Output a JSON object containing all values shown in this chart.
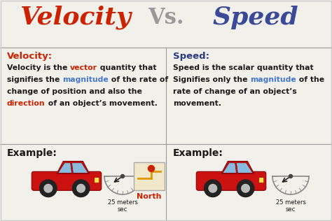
{
  "title_velocity": "Velocity",
  "title_vs": "Vs.",
  "title_speed": "Speed",
  "velocity_heading": "Velocity:",
  "speed_heading": "Speed:",
  "velocity_text_line1_parts": [
    {
      "text": "Velocity is the ",
      "color": "#1a1a1a"
    },
    {
      "text": "vector",
      "color": "#cc2200"
    },
    {
      "text": " quantity that",
      "color": "#1a1a1a"
    }
  ],
  "velocity_text_line2_parts": [
    {
      "text": "signifies the ",
      "color": "#1a1a1a"
    },
    {
      "text": "magnitude",
      "color": "#4477cc"
    },
    {
      "text": " of the rate of",
      "color": "#1a1a1a"
    }
  ],
  "velocity_text_line3_parts": [
    {
      "text": "change of position and also the",
      "color": "#1a1a1a"
    }
  ],
  "velocity_text_line4_parts": [
    {
      "text": "direction",
      "color": "#cc2200"
    },
    {
      "text": " of an object’s movement.",
      "color": "#1a1a1a"
    }
  ],
  "speed_text_line1_parts": [
    {
      "text": "Speed is the scalar quantity that",
      "color": "#1a1a1a"
    }
  ],
  "speed_text_line2_parts": [
    {
      "text": "Signifies only the ",
      "color": "#1a1a1a"
    },
    {
      "text": "magnitude",
      "color": "#4477cc"
    },
    {
      "text": " of the",
      "color": "#1a1a1a"
    }
  ],
  "speed_text_line3_parts": [
    {
      "text": "rate of change of an object’s",
      "color": "#1a1a1a"
    }
  ],
  "speed_text_line4_parts": [
    {
      "text": "movement.",
      "color": "#1a1a1a"
    }
  ],
  "example_label": "Example:",
  "speed_label": "25 meters\nsec",
  "north_label": "North",
  "bg_color": "#f2f0eb",
  "divider_color": "#999999",
  "velocity_color": "#cc2200",
  "speed_color": "#3a4a99",
  "vs_color": "#999999",
  "heading_velocity_color": "#cc2200",
  "heading_speed_color": "#2a3a80",
  "body_text_color": "#1a1a1a",
  "car_red": "#cc1111",
  "car_dark": "#880000",
  "car_window": "#88bbdd"
}
